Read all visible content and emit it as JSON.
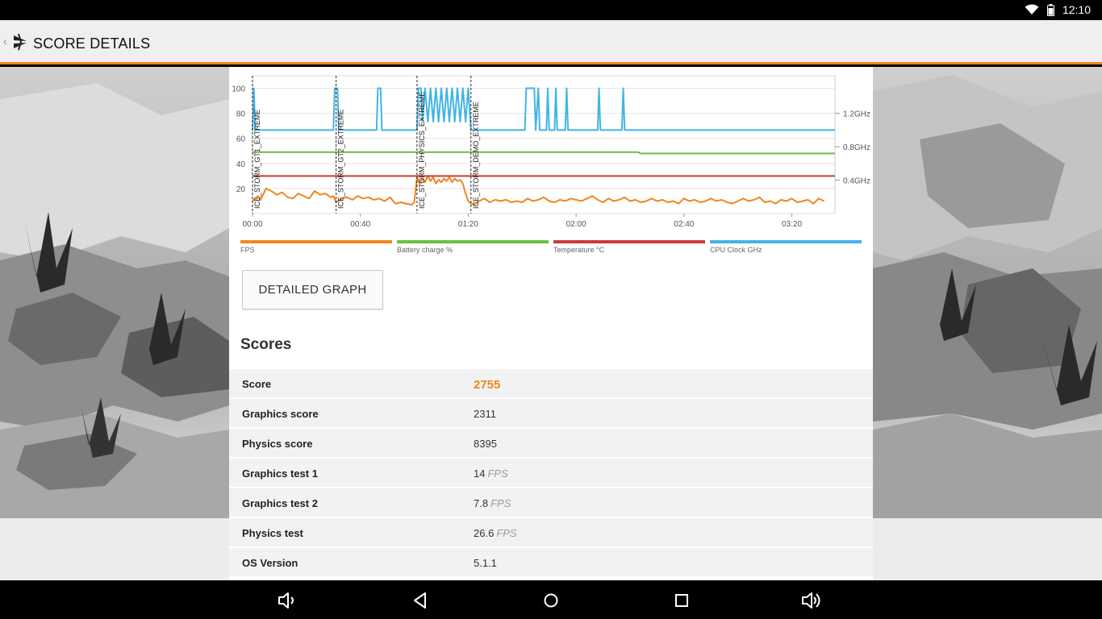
{
  "status_bar": {
    "time": "12:10",
    "icons": [
      "wifi-icon",
      "battery-icon"
    ]
  },
  "app_bar": {
    "title": "SCORE DETAILS",
    "back_icon": "chevron-left-icon",
    "logo_icon": "3dmark-logo-icon"
  },
  "chart_data": {
    "type": "line",
    "x_tick_labels": [
      "00:00",
      "00:40",
      "01:20",
      "02:00",
      "02:40",
      "03:20"
    ],
    "x_ticks_seconds": [
      0,
      40,
      80,
      120,
      160,
      200
    ],
    "xlim_seconds": [
      0,
      216
    ],
    "left_ticks": [
      "100",
      "80",
      "60",
      "40",
      "20"
    ],
    "left_tick_values": [
      100,
      80,
      60,
      40,
      20
    ],
    "left_ylim": [
      0,
      110
    ],
    "right_ticks": [
      "1.2GHz",
      "0.8GHz",
      "0.4GHz"
    ],
    "right_tick_values": [
      1.2,
      0.8,
      0.4
    ],
    "right_ylim": [
      0.0,
      1.65
    ],
    "markers": [
      {
        "label": "ICE_STORM_GT1_EXTREME",
        "x": 0
      },
      {
        "label": "ICE_STORM_GT2_EXTREME",
        "x": 31
      },
      {
        "label": "ICE_STORM_PHYSICS_EXTREME",
        "x": 61
      },
      {
        "label": "ICE_STORM_DEMO_EXTREME",
        "x": 81
      }
    ],
    "series": [
      {
        "name": "FPS",
        "color": "#f0861f",
        "axis": "left",
        "x": [
          0,
          2,
          3,
          5,
          7,
          9,
          11,
          13,
          15,
          17,
          19,
          21,
          23,
          25,
          27,
          29,
          30,
          31,
          33,
          35,
          37,
          39,
          41,
          43,
          45,
          47,
          49,
          51,
          53,
          55,
          57,
          59,
          60,
          61,
          62,
          63,
          64,
          65,
          66,
          67,
          68,
          69,
          70,
          71,
          72,
          73,
          74,
          75,
          76,
          77,
          78,
          79,
          80,
          81,
          82,
          84,
          86,
          88,
          90,
          92,
          94,
          96,
          98,
          100,
          102,
          104,
          106,
          108,
          110,
          112,
          114,
          116,
          118,
          120,
          122,
          124,
          126,
          128,
          130,
          132,
          134,
          136,
          138,
          140,
          142,
          144,
          146,
          148,
          150,
          152,
          154,
          156,
          158,
          160,
          162,
          164,
          166,
          168,
          170,
          172,
          174,
          176,
          178,
          180,
          182,
          184,
          186,
          188,
          190,
          192,
          194,
          196,
          198,
          200,
          202,
          204,
          206,
          208,
          210,
          212
        ],
        "y": [
          10,
          14,
          11,
          20,
          18,
          15,
          17,
          13,
          12,
          16,
          14,
          12,
          18,
          15,
          16,
          13,
          14,
          9,
          12,
          13,
          11,
          14,
          12,
          13,
          11,
          12,
          10,
          13,
          8,
          9,
          8,
          7,
          9,
          29,
          24,
          28,
          25,
          30,
          26,
          29,
          24,
          27,
          25,
          28,
          26,
          29,
          25,
          28,
          26,
          27,
          24,
          16,
          10,
          8,
          7,
          10,
          12,
          9,
          11,
          10,
          11,
          9,
          10,
          9,
          12,
          10,
          11,
          13,
          10,
          9,
          11,
          10,
          12,
          11,
          10,
          12,
          14,
          11,
          9,
          12,
          10,
          11,
          13,
          10,
          11,
          9,
          10,
          12,
          10,
          11,
          9,
          10,
          8,
          12,
          10,
          11,
          9,
          10,
          12,
          10,
          11,
          9,
          8,
          10,
          12,
          10,
          11,
          13,
          9,
          10,
          8,
          11,
          10,
          12,
          9,
          10,
          11,
          8,
          12,
          10
        ]
      },
      {
        "name": "Battery charge %",
        "color": "#6cbf3f",
        "axis": "left",
        "x": [
          0,
          143,
          144,
          216
        ],
        "y": [
          49,
          49,
          48,
          48
        ]
      },
      {
        "name": "Temperature °C",
        "color": "#c93a3a",
        "axis": "left",
        "x": [
          0,
          216
        ],
        "y": [
          30,
          30
        ]
      },
      {
        "name": "CPU Clock GHz",
        "color": "#42b4e6",
        "axis": "right",
        "x": [
          0,
          0.5,
          1,
          30,
          30.5,
          31.5,
          32,
          46,
          46.5,
          47.5,
          48,
          61,
          61.5,
          62.5,
          63,
          64,
          65,
          66,
          67,
          68,
          69,
          70,
          71,
          72,
          73,
          74,
          75,
          76,
          77,
          78,
          79,
          80,
          81,
          82,
          101,
          101.5,
          104.5,
          105,
          106,
          106.5,
          107,
          109,
          109.5,
          110,
          112,
          112.5,
          113,
          116,
          116.5,
          117,
          128,
          128.5,
          129,
          137,
          137.5,
          138,
          216
        ],
        "y": [
          1.0,
          1.5,
          1.0,
          1.0,
          1.5,
          1.5,
          1.0,
          1.0,
          1.5,
          1.5,
          1.0,
          1.0,
          1.5,
          1.5,
          1.1,
          1.5,
          1.1,
          1.5,
          1.1,
          1.5,
          1.1,
          1.5,
          1.1,
          1.5,
          1.1,
          1.5,
          1.1,
          1.5,
          1.1,
          1.5,
          1.1,
          1.5,
          1.0,
          1.0,
          1.0,
          1.5,
          1.5,
          1.0,
          1.5,
          1.0,
          1.0,
          1.0,
          1.5,
          1.0,
          1.0,
          1.5,
          1.0,
          1.0,
          1.5,
          1.0,
          1.0,
          1.5,
          1.0,
          1.0,
          1.5,
          1.0,
          1.0
        ]
      }
    ]
  },
  "legend": [
    {
      "label": "FPS",
      "color": "#f0861f"
    },
    {
      "label": "Battery charge %",
      "color": "#6cbf3f"
    },
    {
      "label": "Temperature °C",
      "color": "#c93a3a"
    },
    {
      "label": "CPU Clock GHz",
      "color": "#42b4e6"
    }
  ],
  "detailed_graph_label": "DETAILED GRAPH",
  "scores": {
    "heading": "Scores",
    "rows": [
      {
        "key": "Score",
        "value": "2755",
        "unit": ""
      },
      {
        "key": "Graphics score",
        "value": "2311",
        "unit": ""
      },
      {
        "key": "Physics score",
        "value": "8395",
        "unit": ""
      },
      {
        "key": "Graphics test 1",
        "value": "14",
        "unit": "FPS"
      },
      {
        "key": "Graphics test 2",
        "value": "7.8",
        "unit": "FPS"
      },
      {
        "key": "Physics test",
        "value": "26.6",
        "unit": "FPS"
      },
      {
        "key": "OS Version",
        "value": "5.1.1",
        "unit": ""
      }
    ]
  },
  "nav_bar": {
    "icons": [
      "volume-down-icon",
      "back-icon",
      "home-icon",
      "recents-icon",
      "volume-up-icon"
    ]
  }
}
